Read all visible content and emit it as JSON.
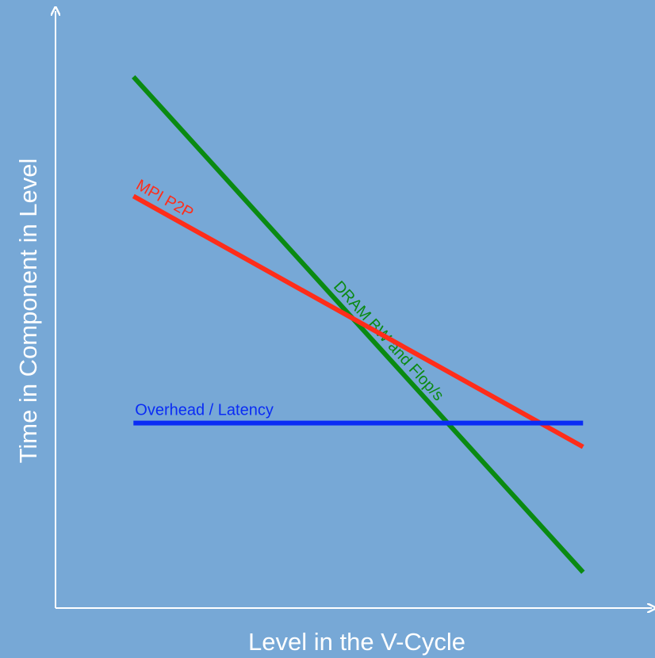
{
  "chart_data": {
    "type": "line",
    "title": "",
    "xlabel": "Level in the V-Cycle",
    "ylabel": "Time in Component in Level",
    "xlim": [
      0,
      100
    ],
    "ylim": [
      0,
      100
    ],
    "grid": false,
    "legend": "none",
    "background_color": "#77a8d6",
    "axis_color": "#ffffff",
    "series": [
      {
        "name": "DRAM BW and Flop/s",
        "color": "#0a8a12",
        "x": [
          13,
          88
        ],
        "y": [
          89,
          6
        ],
        "label_at": 0.44
      },
      {
        "name": "MPI P2P",
        "color": "#ff2d1a",
        "x": [
          13,
          88
        ],
        "y": [
          69,
          27
        ],
        "label_at": 0.0
      },
      {
        "name": "Overhead / Latency",
        "color": "#0a2cf5",
        "x": [
          13,
          88
        ],
        "y": [
          31,
          31
        ],
        "label_at": 0.0
      }
    ]
  }
}
